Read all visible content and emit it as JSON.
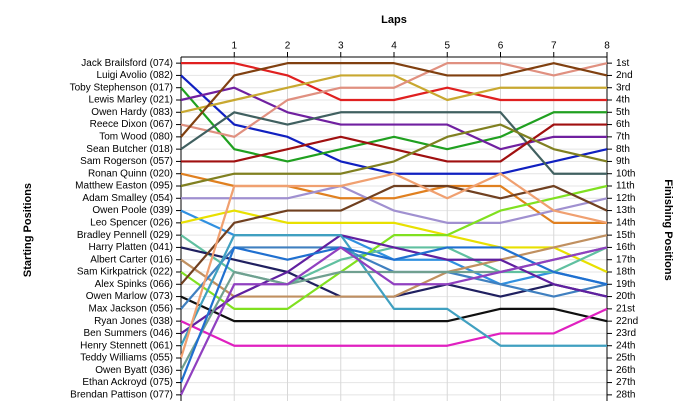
{
  "chart_data": {
    "type": "bump",
    "x_label": "Laps",
    "y_label": "Starting Positions",
    "y2_label": "Finishing Positions",
    "x": [
      0,
      1,
      2,
      3,
      4,
      5,
      6,
      7,
      8
    ],
    "xlim": [
      0,
      8
    ],
    "xticks": [
      1,
      2,
      3,
      4,
      5,
      6,
      7,
      8
    ],
    "ylim": [
      28.5,
      0.5
    ],
    "grid": true,
    "yticks": [
      {
        "value": 1,
        "label": "1st"
      },
      {
        "value": 2,
        "label": "2nd"
      },
      {
        "value": 3,
        "label": "3rd"
      },
      {
        "value": 4,
        "label": "4th"
      },
      {
        "value": 5,
        "label": "5th"
      },
      {
        "value": 6,
        "label": "6th"
      },
      {
        "value": 7,
        "label": "7th"
      },
      {
        "value": 8,
        "label": "8th"
      },
      {
        "value": 9,
        "label": "9th"
      },
      {
        "value": 10,
        "label": "10th"
      },
      {
        "value": 11,
        "label": "11th"
      },
      {
        "value": 12,
        "label": "12th"
      },
      {
        "value": 13,
        "label": "13th"
      },
      {
        "value": 14,
        "label": "14th"
      },
      {
        "value": 15,
        "label": "15th"
      },
      {
        "value": 16,
        "label": "16th"
      },
      {
        "value": 17,
        "label": "17th"
      },
      {
        "value": 18,
        "label": "18th"
      },
      {
        "value": 19,
        "label": "19th"
      },
      {
        "value": 20,
        "label": "20th"
      },
      {
        "value": 21,
        "label": "21st"
      },
      {
        "value": 22,
        "label": "22nd"
      },
      {
        "value": 23,
        "label": "23rd"
      },
      {
        "value": 24,
        "label": "24th"
      },
      {
        "value": 25,
        "label": "25th"
      },
      {
        "value": 26,
        "label": "26th"
      },
      {
        "value": 27,
        "label": "27th"
      },
      {
        "value": 28,
        "label": "28th"
      }
    ],
    "series": [
      {
        "name": "Jack Brailsford (074)",
        "color": "#e02020",
        "values": [
          1,
          1,
          2,
          4,
          4,
          3,
          4,
          4,
          4
        ]
      },
      {
        "name": "Luigi Avolio (082)",
        "color": "#1020c0",
        "values": [
          2,
          6,
          7,
          9,
          10,
          10,
          10,
          9,
          8
        ]
      },
      {
        "name": "Toby Stephenson (017)",
        "color": "#20a020",
        "values": [
          3,
          8,
          9,
          8,
          7,
          8,
          7,
          5,
          5
        ]
      },
      {
        "name": "Lewis Marley (021)",
        "color": "#7020a0",
        "values": [
          4,
          3,
          5,
          6,
          6,
          6,
          8,
          7,
          7
        ]
      },
      {
        "name": "Owen Hardy (083)",
        "color": "#c8a830",
        "values": [
          5,
          4,
          3,
          2,
          2,
          4,
          3,
          3,
          3
        ]
      },
      {
        "name": "Reece Dixon (067)",
        "color": "#e09080",
        "values": [
          6,
          7,
          4,
          3,
          3,
          1,
          1,
          2,
          1
        ]
      },
      {
        "name": "Tom Wood (080)",
        "color": "#804010",
        "values": [
          7,
          2,
          1,
          1,
          1,
          2,
          2,
          1,
          2
        ]
      },
      {
        "name": "Sean Butcher (018)",
        "color": "#406060",
        "values": [
          8,
          5,
          6,
          5,
          5,
          5,
          5,
          10,
          10
        ]
      },
      {
        "name": "Sam Rogerson (057)",
        "color": "#a01010",
        "values": [
          9,
          9,
          8,
          7,
          8,
          9,
          9,
          6,
          6
        ]
      },
      {
        "name": "Ronan Quinn (020)",
        "color": "#e08020",
        "values": [
          10,
          11,
          11,
          12,
          12,
          11,
          11,
          14,
          14
        ]
      },
      {
        "name": "Matthew Easton (095)",
        "color": "#808020",
        "values": [
          11,
          10,
          10,
          10,
          9,
          7,
          6,
          8,
          9
        ]
      },
      {
        "name": "Adam Smalley (054)",
        "color": "#a090d0",
        "values": [
          12,
          12,
          12,
          11,
          13,
          14,
          14,
          13,
          12
        ]
      },
      {
        "name": "Owen Poole (039)",
        "color": "#3090e0",
        "values": [
          13,
          15,
          15,
          15,
          17,
          17,
          19,
          18,
          19
        ]
      },
      {
        "name": "Leo Spencer (026)",
        "color": "#e8e000",
        "values": [
          14,
          13,
          14,
          14,
          14,
          15,
          16,
          16,
          18
        ]
      },
      {
        "name": "Bradley Pennell (029)",
        "color": "#60c0a0",
        "values": [
          15,
          18,
          19,
          17,
          16,
          16,
          18,
          18,
          16
        ]
      },
      {
        "name": "Harry Platten (041)",
        "color": "#202060",
        "values": [
          16,
          17,
          18,
          20,
          20,
          19,
          20,
          19,
          20
        ]
      },
      {
        "name": "Albert Carter (016)",
        "color": "#c09060",
        "values": [
          17,
          20,
          20,
          20,
          20,
          18,
          17,
          16,
          15
        ]
      },
      {
        "name": "Sam Kirkpatrick (022)",
        "color": "#80e020",
        "values": [
          18,
          21,
          21,
          18,
          15,
          15,
          13,
          12,
          11
        ]
      },
      {
        "name": "Alex Spinks (066)",
        "color": "#704020",
        "values": [
          19,
          14,
          13,
          13,
          11,
          11,
          12,
          11,
          13
        ]
      },
      {
        "name": "Owen Marlow (073)",
        "color": "#101010",
        "values": [
          20,
          22,
          22,
          22,
          22,
          22,
          21,
          21,
          22
        ]
      },
      {
        "name": "Max Jackson (056)",
        "color": "#4080c0",
        "values": [
          21,
          16,
          16,
          16,
          18,
          18,
          19,
          20,
          19
        ]
      },
      {
        "name": "Ryan Jones (038)",
        "color": "#e020c0",
        "values": [
          22,
          24,
          24,
          24,
          24,
          24,
          23,
          23,
          21
        ]
      },
      {
        "name": "Ben Summers (046)",
        "color": "#6020a0",
        "values": [
          23,
          20,
          18,
          15,
          16,
          17,
          17,
          19,
          20
        ]
      },
      {
        "name": "Henry Stennett (061)",
        "color": "#40a0c0",
        "values": [
          24,
          15,
          15,
          15,
          21,
          21,
          24,
          24,
          24
        ]
      },
      {
        "name": "Teddy Williams (055)",
        "color": "#f0a070",
        "values": [
          25,
          11,
          11,
          11,
          10,
          12,
          10,
          13,
          14
        ]
      },
      {
        "name": "Owen Byatt (036)",
        "color": "#70a090",
        "values": [
          26,
          18,
          19,
          18,
          18,
          18,
          18,
          17,
          16
        ]
      },
      {
        "name": "Ethan Ackroyd (075)",
        "color": "#2070d0",
        "values": [
          27,
          16,
          17,
          16,
          17,
          16,
          16,
          18,
          19
        ]
      },
      {
        "name": "Brendan Pattison (077)",
        "color": "#9040c0",
        "values": [
          28,
          19,
          19,
          16,
          19,
          19,
          18,
          17,
          16
        ]
      }
    ]
  }
}
